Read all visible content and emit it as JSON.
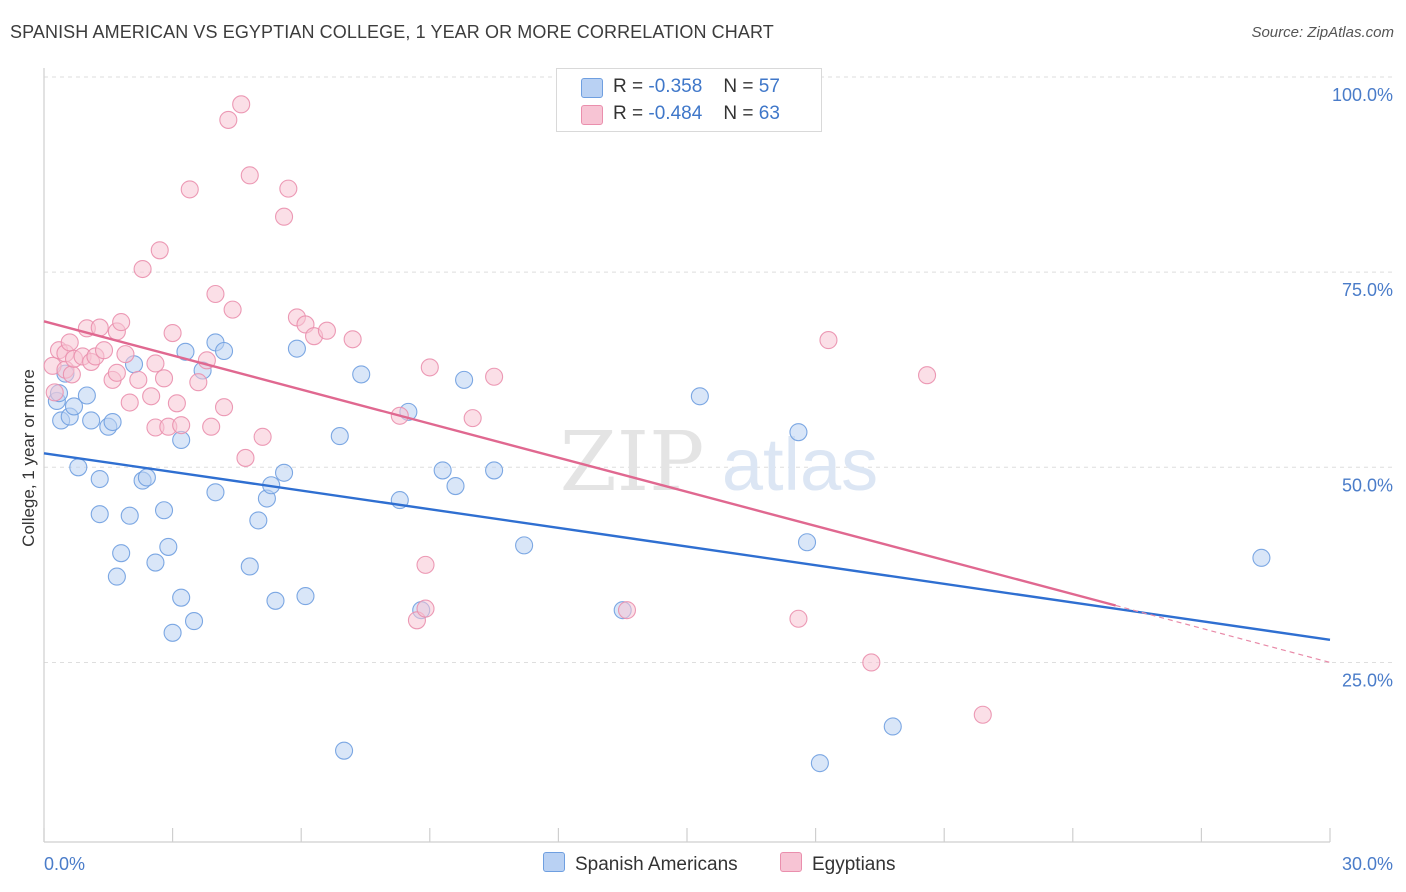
{
  "title": "SPANISH AMERICAN VS EGYPTIAN COLLEGE, 1 YEAR OR MORE CORRELATION CHART",
  "source": "Source: ZipAtlas.com",
  "watermark": {
    "zip": "ZIP",
    "atlas": "atlas"
  },
  "legend_top": [
    {
      "r_label": "R =",
      "r_value": "-0.358",
      "n_label": "N =",
      "n_value": "57",
      "color": "#a9c8f0"
    },
    {
      "r_label": "R =",
      "r_value": "-0.484",
      "n_label": "N =",
      "n_value": "63",
      "color": "#f6b8cb"
    }
  ],
  "chart_data": {
    "type": "scatter",
    "title": "SPANISH AMERICAN VS EGYPTIAN COLLEGE, 1 YEAR OR MORE CORRELATION CHART",
    "xlabel": "",
    "ylabel": "College, 1 year or more",
    "xlim": [
      0,
      30
    ],
    "ylim": [
      2,
      100
    ],
    "x_ticks": [
      "0.0%",
      "30.0%"
    ],
    "y_ticks": [
      {
        "value": 100,
        "label": "100.0%"
      },
      {
        "value": 75,
        "label": "75.0%"
      },
      {
        "value": 50,
        "label": "50.0%"
      },
      {
        "value": 25,
        "label": "25.0%"
      }
    ],
    "grid": true,
    "legend_placement": "bottom-center",
    "series": [
      {
        "name": "Spanish Americans",
        "color": "#6f9fe0",
        "fill": "#b9d1f3",
        "trend": {
          "x": [
            0,
            30
          ],
          "y": [
            51.8,
            27.9
          ]
        },
        "points": [
          [
            0.3,
            58.5
          ],
          [
            0.35,
            59.5
          ],
          [
            0.4,
            56
          ],
          [
            0.5,
            62
          ],
          [
            0.6,
            56.5
          ],
          [
            0.7,
            57.8
          ],
          [
            1.0,
            59.2
          ],
          [
            1.1,
            56
          ],
          [
            0.8,
            50
          ],
          [
            1.3,
            48.5
          ],
          [
            1.5,
            55.2
          ],
          [
            1.6,
            55.8
          ],
          [
            1.3,
            44
          ],
          [
            1.7,
            36
          ],
          [
            1.8,
            39
          ],
          [
            2.0,
            43.8
          ],
          [
            2.1,
            63.2
          ],
          [
            2.3,
            48.3
          ],
          [
            2.4,
            48.7
          ],
          [
            2.6,
            37.8
          ],
          [
            2.8,
            44.5
          ],
          [
            2.9,
            39.8
          ],
          [
            3.0,
            28.8
          ],
          [
            3.2,
            33.3
          ],
          [
            3.2,
            53.5
          ],
          [
            3.3,
            64.8
          ],
          [
            3.5,
            30.3
          ],
          [
            3.7,
            62.4
          ],
          [
            4.0,
            46.8
          ],
          [
            4.0,
            66
          ],
          [
            4.2,
            64.9
          ],
          [
            4.8,
            37.3
          ],
          [
            5.0,
            43.2
          ],
          [
            5.2,
            46
          ],
          [
            5.3,
            47.7
          ],
          [
            5.4,
            32.9
          ],
          [
            5.6,
            49.3
          ],
          [
            5.9,
            65.2
          ],
          [
            6.1,
            33.5
          ],
          [
            6.9,
            54
          ],
          [
            7.0,
            13.7
          ],
          [
            7.4,
            61.9
          ],
          [
            8.3,
            45.8
          ],
          [
            8.5,
            57.1
          ],
          [
            8.8,
            31.7
          ],
          [
            9.3,
            49.6
          ],
          [
            9.6,
            47.6
          ],
          [
            9.8,
            61.2
          ],
          [
            10.5,
            49.6
          ],
          [
            11.2,
            40
          ],
          [
            13.5,
            31.7
          ],
          [
            15.3,
            59.1
          ],
          [
            17.6,
            54.5
          ],
          [
            17.8,
            40.4
          ],
          [
            19.8,
            16.8
          ],
          [
            18.1,
            12.1
          ],
          [
            28.4,
            38.4
          ]
        ]
      },
      {
        "name": "Egyptians",
        "color": "#ea8fad",
        "fill": "#f7c4d4",
        "trend": {
          "x": [
            0,
            25
          ],
          "y": [
            68.7,
            32.3
          ]
        },
        "trend_ext": {
          "x": [
            25,
            30
          ],
          "y": [
            32.3,
            25.0
          ]
        },
        "points": [
          [
            0.2,
            63
          ],
          [
            0.25,
            59.6
          ],
          [
            0.35,
            65
          ],
          [
            0.5,
            62.5
          ],
          [
            0.5,
            64.6
          ],
          [
            0.6,
            66
          ],
          [
            0.65,
            61.9
          ],
          [
            0.7,
            63.9
          ],
          [
            0.9,
            64.2
          ],
          [
            1.0,
            67.8
          ],
          [
            1.1,
            63.5
          ],
          [
            1.2,
            64.2
          ],
          [
            1.3,
            67.9
          ],
          [
            1.4,
            65
          ],
          [
            1.6,
            61.2
          ],
          [
            1.7,
            67.4
          ],
          [
            1.7,
            62.1
          ],
          [
            1.8,
            68.6
          ],
          [
            1.9,
            64.5
          ],
          [
            2.0,
            58.3
          ],
          [
            2.2,
            61.2
          ],
          [
            2.3,
            75.4
          ],
          [
            2.5,
            59.1
          ],
          [
            2.6,
            55.1
          ],
          [
            2.6,
            63.3
          ],
          [
            2.7,
            77.8
          ],
          [
            2.8,
            61.4
          ],
          [
            2.9,
            55.2
          ],
          [
            3.0,
            67.2
          ],
          [
            3.1,
            58.2
          ],
          [
            3.2,
            55.4
          ],
          [
            3.4,
            85.6
          ],
          [
            3.6,
            60.9
          ],
          [
            3.8,
            63.7
          ],
          [
            3.9,
            55.2
          ],
          [
            4.0,
            72.2
          ],
          [
            4.2,
            57.7
          ],
          [
            4.3,
            94.5
          ],
          [
            4.4,
            70.2
          ],
          [
            4.6,
            96.5
          ],
          [
            4.7,
            51.2
          ],
          [
            4.8,
            87.4
          ],
          [
            5.1,
            53.9
          ],
          [
            5.6,
            82.1
          ],
          [
            5.7,
            85.7
          ],
          [
            5.9,
            69.2
          ],
          [
            6.1,
            68.3
          ],
          [
            6.3,
            66.8
          ],
          [
            6.6,
            67.5
          ],
          [
            7.2,
            66.4
          ],
          [
            8.3,
            56.6
          ],
          [
            8.7,
            30.4
          ],
          [
            8.9,
            37.5
          ],
          [
            8.9,
            31.9
          ],
          [
            9.0,
            62.8
          ],
          [
            10.0,
            56.3
          ],
          [
            10.5,
            61.6
          ],
          [
            13.6,
            31.7
          ],
          [
            17.6,
            30.6
          ],
          [
            18.3,
            66.3
          ],
          [
            19.3,
            25
          ],
          [
            20.6,
            61.8
          ],
          [
            21.9,
            18.3
          ]
        ]
      }
    ]
  }
}
